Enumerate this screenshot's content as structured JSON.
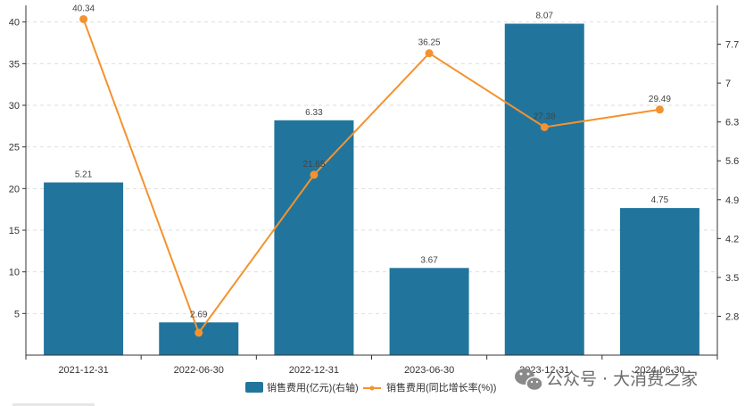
{
  "chart_data": {
    "type": "bar+line",
    "categories": [
      "2021-12-31",
      "2022-06-30",
      "2022-12-31",
      "2023-06-30",
      "2023-12-31",
      "2024-06-30"
    ],
    "series": [
      {
        "name": "销售费用(亿元)(右轴)",
        "type": "bar",
        "axis": "right",
        "values": [
          5.21,
          2.69,
          6.33,
          3.67,
          8.07,
          4.75
        ],
        "labels": [
          "5.21",
          "2.69",
          "6.33",
          "3.67",
          "8.07",
          "4.75"
        ],
        "color": "#21759d"
      },
      {
        "name": "销售费用(同比增长率(%))",
        "type": "line",
        "axis": "left",
        "values": [
          40.34,
          2.69,
          21.65,
          36.25,
          27.38,
          29.49
        ],
        "labels": [
          "40.34",
          "",
          "21.65",
          "36.25",
          "27.38",
          "29.49"
        ],
        "color": "#f5922e"
      }
    ],
    "left_axis": {
      "ylim": [
        0,
        42
      ],
      "ticks": [
        5,
        10,
        15,
        20,
        25,
        30,
        35,
        40
      ]
    },
    "right_axis": {
      "ylim": [
        2.1,
        8.4
      ],
      "ticks": [
        2.8,
        3.5,
        4.2,
        4.9,
        5.6,
        6.3,
        7,
        7.7
      ],
      "tick_labels": [
        "2.8",
        "3.5",
        "4.2",
        "4.9",
        "5.6",
        "6.3",
        "7",
        "7.7"
      ]
    },
    "grid": true,
    "legend_position": "bottom-center"
  },
  "watermark": {
    "text": "公众号 · 大消费之家",
    "icon": "wechat-icon"
  }
}
